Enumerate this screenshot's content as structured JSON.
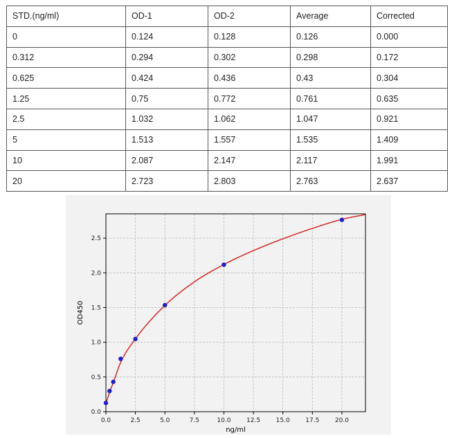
{
  "table": {
    "headers": [
      "STD.(ng/ml)",
      "OD-1",
      "OD-2",
      "Average",
      "Corrected"
    ],
    "rows": [
      [
        "0",
        "0.124",
        "0.128",
        "0.126",
        "0.000"
      ],
      [
        "0.312",
        "0.294",
        "0.302",
        "0.298",
        "0.172"
      ],
      [
        "0.625",
        "0.424",
        "0.436",
        "0.43",
        "0.304"
      ],
      [
        "1.25",
        "0.75",
        "0.772",
        "0.761",
        "0.635"
      ],
      [
        "2.5",
        "1.032",
        "1.062",
        "1.047",
        "0.921"
      ],
      [
        "5",
        "1.513",
        "1.557",
        "1.535",
        "1.409"
      ],
      [
        "10",
        "2.087",
        "2.147",
        "2.117",
        "1.991"
      ],
      [
        "20",
        "2.723",
        "2.803",
        "2.763",
        "2.637"
      ]
    ]
  },
  "chart_data": {
    "type": "scatter",
    "title": "",
    "xlabel": "ng/ml",
    "ylabel": "OD450",
    "xlim": [
      0,
      22
    ],
    "ylim": [
      0,
      2.85
    ],
    "grid": true,
    "x_ticks": [
      "0.0",
      "2.5",
      "5.0",
      "7.5",
      "10.0",
      "12.5",
      "15.0",
      "17.5",
      "20.0"
    ],
    "y_ticks": [
      "0.0",
      "0.5",
      "1.0",
      "1.5",
      "2.0",
      "2.5"
    ],
    "points": {
      "x": [
        0,
        0.312,
        0.625,
        1.25,
        2.5,
        5,
        10,
        20
      ],
      "y": [
        0.126,
        0.298,
        0.43,
        0.761,
        1.047,
        1.535,
        2.117,
        2.763
      ]
    },
    "fit_curve": {
      "x": [
        0,
        0.312,
        0.625,
        1.25,
        2.5,
        5,
        7.5,
        10,
        12.5,
        15,
        17.5,
        20,
        22
      ],
      "y": [
        0.12,
        0.28,
        0.42,
        0.71,
        1.05,
        1.53,
        1.87,
        2.12,
        2.32,
        2.49,
        2.64,
        2.77,
        2.84
      ]
    },
    "colors": {
      "points": "#1f1fcc",
      "curve": "#d62728"
    }
  }
}
